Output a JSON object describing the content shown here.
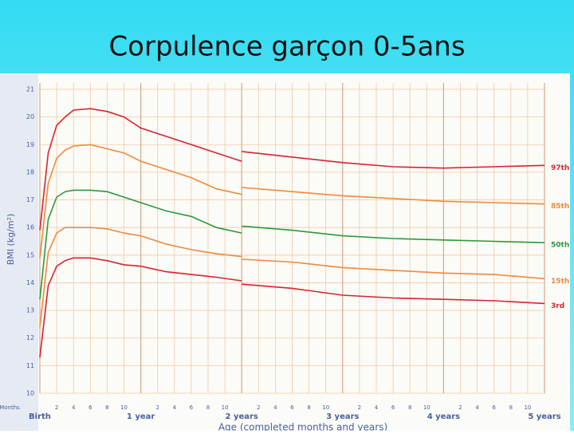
{
  "chart_data": {
    "type": "line",
    "title": "Corpulence garçon 0-5ans",
    "y_label": "BMI (kg/m²)",
    "x_label": "Age (completed months and years)",
    "x_unit_label": "Months",
    "x": [
      0,
      1,
      2,
      3,
      4,
      6,
      8,
      10,
      12,
      15,
      18,
      21,
      24,
      24,
      24,
      30,
      36,
      42,
      48,
      54,
      60
    ],
    "series": [
      {
        "name": "97th",
        "color": "#d8232f",
        "values": [
          15.9,
          18.7,
          19.7,
          20.0,
          20.25,
          20.3,
          20.2,
          20.0,
          19.6,
          19.3,
          19.0,
          18.7,
          18.4,
          null,
          18.75,
          18.55,
          18.35,
          18.2,
          18.15,
          18.2,
          18.25
        ]
      },
      {
        "name": "85th",
        "color": "#f0893a",
        "values": [
          14.9,
          17.6,
          18.5,
          18.8,
          18.95,
          19.0,
          18.85,
          18.7,
          18.4,
          18.1,
          17.8,
          17.4,
          17.2,
          null,
          17.45,
          17.3,
          17.15,
          17.05,
          16.95,
          16.9,
          16.85
        ]
      },
      {
        "name": "50th",
        "color": "#2a9a3a",
        "values": [
          13.4,
          16.3,
          17.1,
          17.3,
          17.35,
          17.35,
          17.3,
          17.1,
          16.9,
          16.6,
          16.4,
          16.0,
          15.8,
          null,
          16.05,
          15.9,
          15.7,
          15.6,
          15.55,
          15.5,
          15.45
        ]
      },
      {
        "name": "15th",
        "color": "#f0893a",
        "values": [
          12.4,
          15.1,
          15.8,
          16.0,
          16.0,
          16.0,
          15.95,
          15.8,
          15.7,
          15.4,
          15.2,
          15.05,
          14.95,
          null,
          14.85,
          14.75,
          14.55,
          14.45,
          14.35,
          14.3,
          14.15
        ]
      },
      {
        "name": "3rd",
        "color": "#d8232f",
        "values": [
          11.3,
          13.9,
          14.6,
          14.8,
          14.9,
          14.9,
          14.8,
          14.65,
          14.6,
          14.4,
          14.3,
          14.2,
          14.07,
          null,
          13.95,
          13.8,
          13.55,
          13.45,
          13.4,
          13.35,
          13.25
        ]
      }
    ],
    "xlim": [
      0,
      60
    ],
    "ylim": [
      10,
      21
    ],
    "yticks": [
      10,
      11,
      12,
      13,
      14,
      15,
      16,
      17,
      18,
      19,
      20,
      21
    ],
    "xticks": [
      {
        "value": 0,
        "label": "Birth"
      },
      2,
      4,
      6,
      8,
      10,
      {
        "value": 12,
        "label": "1 year"
      },
      {
        "value": 14,
        "label": "2"
      },
      {
        "value": 16,
        "label": "4"
      },
      {
        "value": 18,
        "label": "6"
      },
      {
        "value": 20,
        "label": "8"
      },
      {
        "value": 22,
        "label": "10"
      },
      {
        "value": 24,
        "label": "2 years"
      },
      {
        "value": 26,
        "label": "2"
      },
      {
        "value": 28,
        "label": "4"
      },
      {
        "value": 30,
        "label": "6"
      },
      {
        "value": 32,
        "label": "8"
      },
      {
        "value": 34,
        "label": "10"
      },
      {
        "value": 36,
        "label": "3 years"
      },
      {
        "value": 38,
        "label": "2"
      },
      {
        "value": 40,
        "label": "4"
      },
      {
        "value": 42,
        "label": "6"
      },
      {
        "value": 44,
        "label": "8"
      },
      {
        "value": 46,
        "label": "10"
      },
      {
        "value": 48,
        "label": "4 years"
      },
      {
        "value": 50,
        "label": "2"
      },
      {
        "value": 52,
        "label": "4"
      },
      {
        "value": 54,
        "label": "6"
      },
      {
        "value": 56,
        "label": "8"
      },
      {
        "value": 58,
        "label": "10"
      },
      {
        "value": 60,
        "label": "5 years"
      }
    ],
    "grid": true
  }
}
